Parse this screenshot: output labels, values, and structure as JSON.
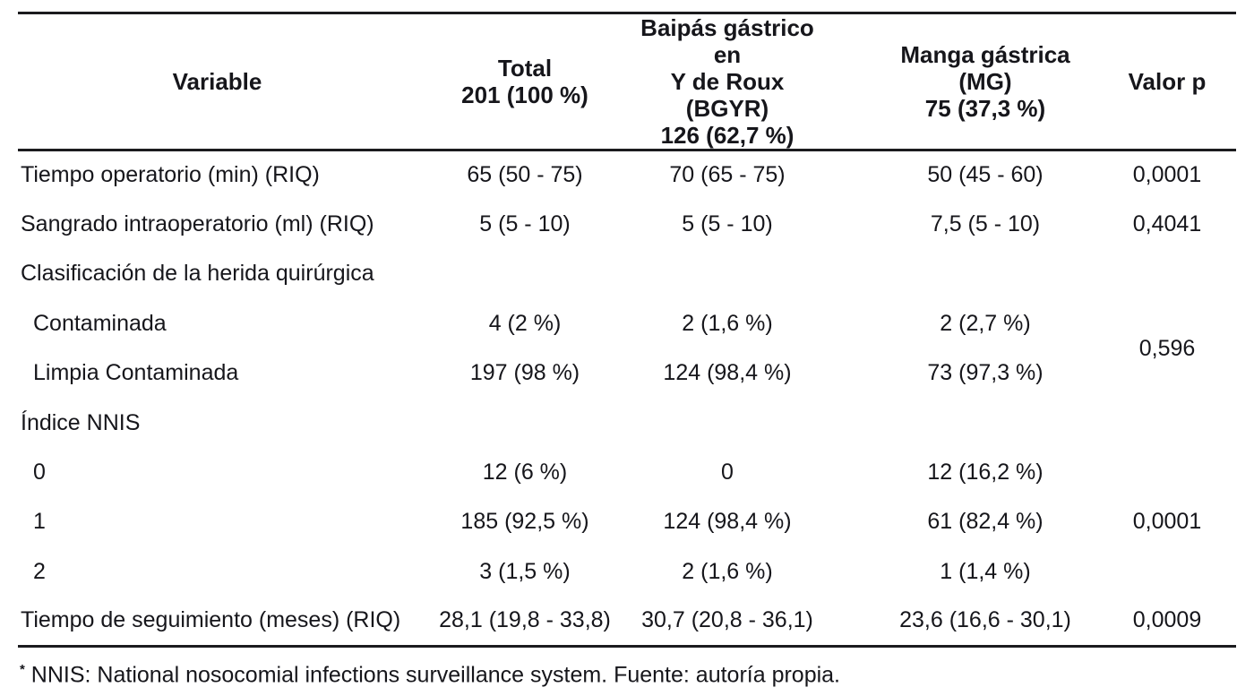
{
  "table": {
    "header": {
      "variable": "Variable",
      "total": [
        "Total",
        "201 (100 %)"
      ],
      "bgyr": [
        "Baipás gástrico en",
        "Y de Roux (BGYR)",
        "126 (62,7 %)"
      ],
      "mg": [
        "Manga gástrica",
        "(MG)",
        "75 (37,3 %)"
      ],
      "p": "Valor p"
    },
    "rows": [
      {
        "label": "Tiempo operatorio (min) (RIQ)",
        "total": "65 (50 - 75)",
        "bgyr": "70 (65 - 75)",
        "mg": "50 (45 - 60)",
        "p": "0,0001"
      },
      {
        "label": "Sangrado intraoperatorio (ml) (RIQ)",
        "total": "5 (5 - 10)",
        "bgyr": "5 (5 - 10)",
        "mg": "7,5 (5 - 10)",
        "p": "0,4041"
      },
      {
        "label": "Clasificación de la herida quirúrgica",
        "total": "",
        "bgyr": "",
        "mg": "",
        "p": ""
      },
      {
        "label": "Contaminada",
        "total": "4 (2 %)",
        "bgyr": "2 (1,6 %)",
        "mg": "2 (2,7 %)",
        "p": "0,596"
      },
      {
        "label": "Limpia Contaminada",
        "total": "197 (98 %)",
        "bgyr": "124 (98,4 %)",
        "mg": "73 (97,3 %)"
      },
      {
        "label": "Índice NNIS",
        "total": "",
        "bgyr": "",
        "mg": "",
        "p": ""
      },
      {
        "label": "0",
        "total": "12 (6 %)",
        "bgyr": "0",
        "mg": "12 (16,2 %)",
        "p": "0,0001"
      },
      {
        "label": "1",
        "total": "185 (92,5 %)",
        "bgyr": "124 (98,4 %)",
        "mg": "61 (82,4 %)"
      },
      {
        "label": "2",
        "total": "3 (1,5 %)",
        "bgyr": "2 (1,6 %)",
        "mg": "1 (1,4 %)"
      },
      {
        "label": "Tiempo de seguimiento (meses) (RIQ)",
        "total": "28,1 (19,8 - 33,8)",
        "bgyr": "30,7 (20,8 - 36,1)",
        "mg": "23,6 (16,6 - 30,1)",
        "p": "0,0009"
      }
    ]
  },
  "footnote": {
    "marker": "*",
    "text": "NNIS: National nosocomial infections surveillance system. Fuente: autoría propia."
  }
}
